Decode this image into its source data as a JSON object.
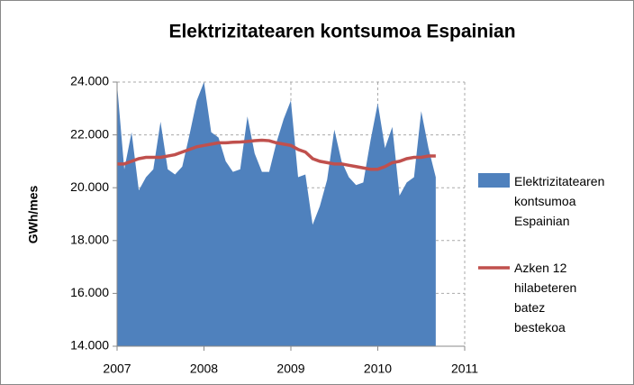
{
  "chart_data": {
    "type": "area_line",
    "title": "Elektrizitatearen kontsumoa Espainian",
    "y_label": "GWh/mes",
    "x": [
      2007,
      2007.083,
      2007.167,
      2007.25,
      2007.333,
      2007.417,
      2007.5,
      2007.583,
      2007.667,
      2007.75,
      2007.833,
      2007.917,
      2008,
      2008.083,
      2008.167,
      2008.25,
      2008.333,
      2008.417,
      2008.5,
      2008.583,
      2008.667,
      2008.75,
      2008.833,
      2008.917,
      2009,
      2009.083,
      2009.167,
      2009.25,
      2009.333,
      2009.417,
      2009.5,
      2009.583,
      2009.667,
      2009.75,
      2009.833,
      2009.917,
      2010,
      2010.083,
      2010.167,
      2010.25,
      2010.333,
      2010.417,
      2010.5,
      2010.583,
      2010.667
    ],
    "series": [
      {
        "name": "Elektrizitatearen kontsumoa Espainian",
        "color": "#4f81bd",
        "kind": "area",
        "values": [
          23900,
          20700,
          22100,
          19900,
          20400,
          20700,
          22500,
          20700,
          20500,
          20800,
          22000,
          23300,
          24000,
          22100,
          21900,
          21000,
          20600,
          20700,
          22700,
          21300,
          20600,
          20600,
          21700,
          22600,
          23300,
          20400,
          20500,
          18600,
          19300,
          20300,
          22200,
          21000,
          20400,
          20100,
          20200,
          21800,
          23200,
          21500,
          22300,
          19700,
          20200,
          20400,
          22900,
          21500,
          20400
        ]
      },
      {
        "name": "Azken 12 hilabeteren batez bestekoa",
        "color": "#c0504d",
        "kind": "line",
        "values": [
          20900,
          20900,
          21000,
          21100,
          21150,
          21150,
          21150,
          21200,
          21250,
          21350,
          21450,
          21550,
          21600,
          21650,
          21700,
          21700,
          21720,
          21730,
          21750,
          21780,
          21800,
          21780,
          21700,
          21650,
          21600,
          21450,
          21350,
          21100,
          21000,
          20950,
          20900,
          20900,
          20850,
          20800,
          20750,
          20700,
          20700,
          20800,
          20950,
          21000,
          21100,
          21150,
          21150,
          21200,
          21200
        ]
      }
    ],
    "xlim": [
      2007,
      2011
    ],
    "xticks": [
      2007,
      2008,
      2009,
      2010,
      2011
    ],
    "ylim": [
      14000,
      24000
    ],
    "yticks": [
      {
        "value": 14000,
        "label": "14.000"
      },
      {
        "value": 16000,
        "label": "16.000"
      },
      {
        "value": 18000,
        "label": "18.000"
      },
      {
        "value": 20000,
        "label": "20.000"
      },
      {
        "value": 22000,
        "label": "22.000"
      },
      {
        "value": 24000,
        "label": "24.000"
      }
    ],
    "grid": true,
    "legend": "right"
  }
}
